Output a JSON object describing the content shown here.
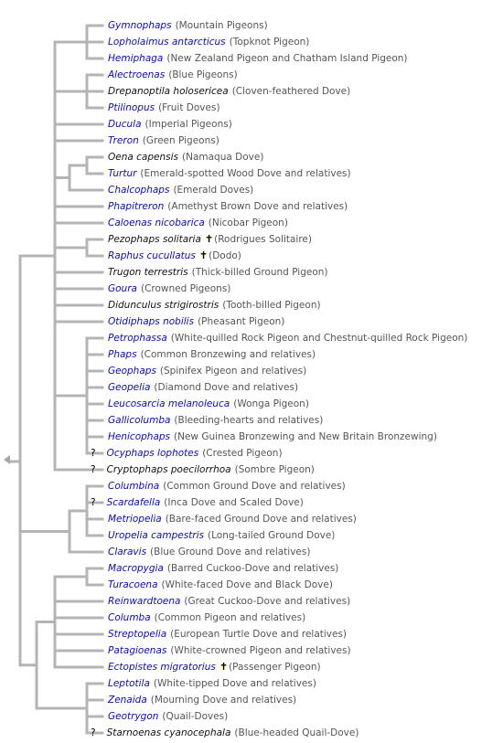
{
  "colors": {
    "branch": "#b4b4b4",
    "link": "#0b0bbf",
    "plain": "#111111",
    "common": "#555555"
  },
  "icons": {
    "collapse": "triangle-left-icon",
    "extinct": "dagger-icon"
  },
  "taxa": [
    {
      "genus": "Gymnophaps",
      "common": "(Mountain Pigeons)",
      "link": true
    },
    {
      "genus": "Lopholaimus antarcticus",
      "common": "(Topknot Pigeon)",
      "link": true
    },
    {
      "genus": "Hemiphaga",
      "common": "(New Zealand Pigeon and Chatham Island Pigeon)",
      "link": true
    },
    {
      "genus": "Alectroenas",
      "common": "(Blue Pigeons)",
      "link": true
    },
    {
      "genus": "Drepanoptila holosericea",
      "common": "(Cloven-feathered Dove)",
      "link": false
    },
    {
      "genus": "Ptilinopus",
      "common": "(Fruit Doves)",
      "link": true
    },
    {
      "genus": "Ducula",
      "common": "(Imperial Pigeons)",
      "link": true
    },
    {
      "genus": "Treron",
      "common": "(Green Pigeons)",
      "link": true
    },
    {
      "genus": "Oena capensis",
      "common": "(Namaqua Dove)",
      "link": false
    },
    {
      "genus": "Turtur",
      "common": "(Emerald-spotted Wood Dove and relatives)",
      "link": true
    },
    {
      "genus": "Chalcophaps",
      "common": "(Emerald Doves)",
      "link": true
    },
    {
      "genus": "Phapitreron",
      "common": "(Amethyst Brown Dove and relatives)",
      "link": true
    },
    {
      "genus": "Caloenas nicobarica",
      "common": "(Nicobar Pigeon)",
      "link": true
    },
    {
      "genus": "Pezophaps solitaria",
      "common": "(Rodrigues Solitaire)",
      "link": false,
      "extinct": true,
      "dagger": "✝"
    },
    {
      "genus": "Raphus cucullatus",
      "common": "(Dodo)",
      "link": true,
      "extinct": true,
      "dagger": "✝"
    },
    {
      "genus": "Trugon terrestris",
      "common": "(Thick-billed Ground Pigeon)",
      "link": false
    },
    {
      "genus": "Goura",
      "common": "(Crowned Pigeons)",
      "link": true
    },
    {
      "genus": "Didunculus strigirostris",
      "common": "(Tooth-billed Pigeon)",
      "link": false
    },
    {
      "genus": "Otidiphaps nobilis",
      "common": "(Pheasant Pigeon)",
      "link": true
    },
    {
      "genus": "Petrophassa",
      "common": "(White-quilled Rock Pigeon and Chestnut-quilled Rock Pigeon)",
      "link": true
    },
    {
      "genus": "Phaps",
      "common": "(Common Bronzewing and relatives)",
      "link": true
    },
    {
      "genus": "Geophaps",
      "common": "(Spinifex Pigeon and relatives)",
      "link": true
    },
    {
      "genus": "Geopelia",
      "common": "(Diamond Dove and relatives)",
      "link": true
    },
    {
      "genus": "Leucosarcia melanoleuca",
      "common": "(Wonga Pigeon)",
      "link": true
    },
    {
      "genus": "Gallicolumba",
      "common": "(Bleeding-hearts and relatives)",
      "link": true
    },
    {
      "genus": "Henicophaps",
      "common": "(New Guinea Bronzewing and New Britain Bronzewing)",
      "link": true
    },
    {
      "genus": "Ocyphaps lophotes",
      "common": "(Crested Pigeon)",
      "link": true,
      "uncertain": true
    },
    {
      "genus": "Cryptophaps poecilorrhoa",
      "common": "(Sombre Pigeon)",
      "link": false,
      "uncertain": true
    },
    {
      "genus": "Columbina",
      "common": "(Common Ground Dove and relatives)",
      "link": true
    },
    {
      "genus": "Scardafella",
      "common": "(Inca Dove and Scaled Dove)",
      "link": true,
      "uncertain": true
    },
    {
      "genus": "Metriopelia",
      "common": "(Bare-faced Ground Dove and relatives)",
      "link": true
    },
    {
      "genus": "Uropelia campestris",
      "common": "(Long-tailed Ground Dove)",
      "link": true
    },
    {
      "genus": "Claravis",
      "common": "(Blue Ground Dove and relatives)",
      "link": true
    },
    {
      "genus": "Macropygia",
      "common": "(Barred Cuckoo-Dove and relatives)",
      "link": true
    },
    {
      "genus": "Turacoena",
      "common": "(White-faced  Dove and Black Dove)",
      "link": true
    },
    {
      "genus": "Reinwardtoena",
      "common": "(Great Cuckoo-Dove and relatives)",
      "link": true
    },
    {
      "genus": "Columba",
      "common": "(Common Pigeon and relatives)",
      "link": true
    },
    {
      "genus": "Streptopelia",
      "common": "(European Turtle Dove and relatives)",
      "link": true
    },
    {
      "genus": "Patagioenas",
      "common": "(White-crowned Pigeon and relatives)",
      "link": true
    },
    {
      "genus": "Ectopistes migratorius",
      "common": "(Passenger Pigeon)",
      "link": true,
      "extinct": true,
      "dagger": "✝"
    },
    {
      "genus": "Leptotila",
      "common": "(White-tipped Dove and relatives)",
      "link": true
    },
    {
      "genus": "Zenaida",
      "common": "(Mourning Dove and relatives)",
      "link": true
    },
    {
      "genus": "Geotrygon",
      "common": "(Quail-Doves)",
      "link": true
    },
    {
      "genus": "Starnoenas cyanocephala",
      "common": "(Blue-headed Quail-Dove)",
      "link": false,
      "uncertain": true
    }
  ],
  "question_mark": "?"
}
